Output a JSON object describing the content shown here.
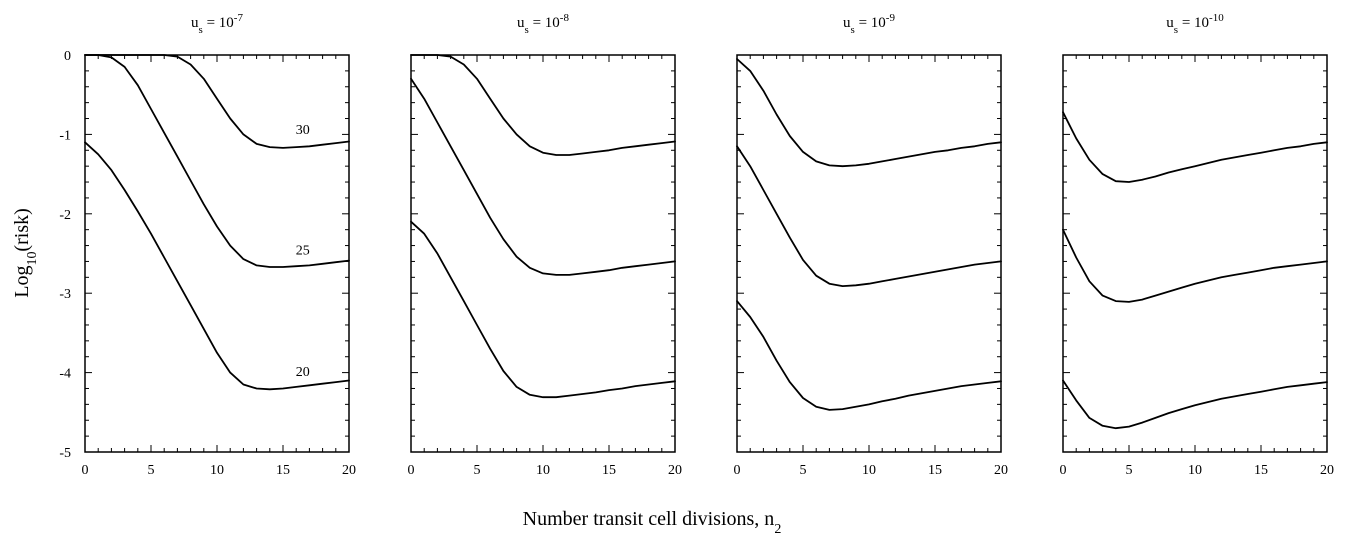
{
  "chart_data": {
    "type": "line",
    "xlabel": "Number transit cell divisions, n",
    "xlabel_sub": "2",
    "ylabel": "Log",
    "ylabel_sub": "10",
    "ylabel_tail": "(risk)",
    "xlim": [
      0,
      20
    ],
    "ylim": [
      -5,
      0
    ],
    "x_ticks": [
      0,
      5,
      10,
      15,
      20
    ],
    "y_ticks": [
      0,
      -1,
      -2,
      -3,
      -4,
      -5
    ],
    "x_tick_labels": [
      "0",
      "5",
      "10",
      "15",
      "20"
    ],
    "y_tick_labels": [
      "0",
      "-1",
      "-2",
      "-3",
      "-4",
      "-5"
    ],
    "grid": false,
    "x": [
      0,
      1,
      2,
      3,
      4,
      5,
      6,
      7,
      8,
      9,
      10,
      11,
      12,
      13,
      14,
      15,
      16,
      17,
      18,
      19,
      20
    ],
    "panels": [
      {
        "title": "u",
        "title_sub": "s",
        "title_mid": " = 10",
        "title_sup": "-7",
        "series": [
          {
            "name": "30",
            "label_x": 16.5,
            "label_y": -0.93,
            "values": [
              0,
              0,
              0,
              0,
              0,
              0,
              0,
              -0.02,
              -0.12,
              -0.3,
              -0.55,
              -0.8,
              -1.0,
              -1.12,
              -1.16,
              -1.17,
              -1.16,
              -1.15,
              -1.13,
              -1.11,
              -1.09
            ]
          },
          {
            "name": "25",
            "label_x": 16.5,
            "label_y": -2.45,
            "values": [
              0,
              0,
              -0.03,
              -0.15,
              -0.38,
              -0.68,
              -0.98,
              -1.28,
              -1.58,
              -1.88,
              -2.16,
              -2.4,
              -2.57,
              -2.65,
              -2.67,
              -2.67,
              -2.66,
              -2.65,
              -2.63,
              -2.61,
              -2.59
            ]
          },
          {
            "name": "20",
            "label_x": 16.5,
            "label_y": -3.98,
            "values": [
              -1.1,
              -1.25,
              -1.45,
              -1.7,
              -1.97,
              -2.25,
              -2.55,
              -2.85,
              -3.15,
              -3.45,
              -3.75,
              -4.0,
              -4.15,
              -4.2,
              -4.21,
              -4.2,
              -4.18,
              -4.16,
              -4.14,
              -4.12,
              -4.1
            ]
          }
        ]
      },
      {
        "title": "u",
        "title_sub": "s",
        "title_mid": " = 10",
        "title_sup": "-8",
        "series": [
          {
            "name": "30",
            "values": [
              0,
              0,
              0,
              -0.02,
              -0.12,
              -0.3,
              -0.55,
              -0.8,
              -1.0,
              -1.15,
              -1.23,
              -1.26,
              -1.26,
              -1.24,
              -1.22,
              -1.2,
              -1.17,
              -1.15,
              -1.13,
              -1.11,
              -1.09
            ]
          },
          {
            "name": "25",
            "values": [
              -0.3,
              -0.55,
              -0.85,
              -1.15,
              -1.45,
              -1.75,
              -2.05,
              -2.32,
              -2.54,
              -2.68,
              -2.75,
              -2.77,
              -2.77,
              -2.75,
              -2.73,
              -2.71,
              -2.68,
              -2.66,
              -2.64,
              -2.62,
              -2.6
            ]
          },
          {
            "name": "20",
            "values": [
              -2.1,
              -2.25,
              -2.5,
              -2.8,
              -3.1,
              -3.4,
              -3.7,
              -3.98,
              -4.18,
              -4.28,
              -4.31,
              -4.31,
              -4.29,
              -4.27,
              -4.25,
              -4.22,
              -4.2,
              -4.17,
              -4.15,
              -4.13,
              -4.11
            ]
          }
        ]
      },
      {
        "title": "u",
        "title_sub": "s",
        "title_mid": " = 10",
        "title_sup": "-9",
        "series": [
          {
            "name": "30",
            "values": [
              -0.05,
              -0.2,
              -0.45,
              -0.75,
              -1.02,
              -1.22,
              -1.34,
              -1.39,
              -1.4,
              -1.39,
              -1.37,
              -1.34,
              -1.31,
              -1.28,
              -1.25,
              -1.22,
              -1.2,
              -1.17,
              -1.15,
              -1.12,
              -1.1
            ]
          },
          {
            "name": "25",
            "values": [
              -1.15,
              -1.4,
              -1.7,
              -2.0,
              -2.3,
              -2.58,
              -2.78,
              -2.88,
              -2.91,
              -2.9,
              -2.88,
              -2.85,
              -2.82,
              -2.79,
              -2.76,
              -2.73,
              -2.7,
              -2.67,
              -2.64,
              -2.62,
              -2.6
            ]
          },
          {
            "name": "20",
            "values": [
              -3.1,
              -3.3,
              -3.55,
              -3.85,
              -4.12,
              -4.32,
              -4.43,
              -4.47,
              -4.46,
              -4.43,
              -4.4,
              -4.36,
              -4.33,
              -4.29,
              -4.26,
              -4.23,
              -4.2,
              -4.17,
              -4.15,
              -4.13,
              -4.11
            ]
          }
        ]
      },
      {
        "title": "u",
        "title_sub": "s",
        "title_mid": " = 10",
        "title_sup": "-10",
        "series": [
          {
            "name": "30",
            "values": [
              -0.72,
              -1.05,
              -1.32,
              -1.5,
              -1.59,
              -1.6,
              -1.57,
              -1.53,
              -1.48,
              -1.44,
              -1.4,
              -1.36,
              -1.32,
              -1.29,
              -1.26,
              -1.23,
              -1.2,
              -1.17,
              -1.15,
              -1.12,
              -1.1
            ]
          },
          {
            "name": "25",
            "values": [
              -2.2,
              -2.55,
              -2.85,
              -3.03,
              -3.1,
              -3.11,
              -3.08,
              -3.03,
              -2.98,
              -2.93,
              -2.88,
              -2.84,
              -2.8,
              -2.77,
              -2.74,
              -2.71,
              -2.68,
              -2.66,
              -2.64,
              -2.62,
              -2.6
            ]
          },
          {
            "name": "20",
            "values": [
              -4.1,
              -4.35,
              -4.57,
              -4.67,
              -4.7,
              -4.68,
              -4.63,
              -4.57,
              -4.51,
              -4.46,
              -4.41,
              -4.37,
              -4.33,
              -4.3,
              -4.27,
              -4.24,
              -4.21,
              -4.18,
              -4.16,
              -4.14,
              -4.12
            ]
          }
        ]
      }
    ]
  }
}
